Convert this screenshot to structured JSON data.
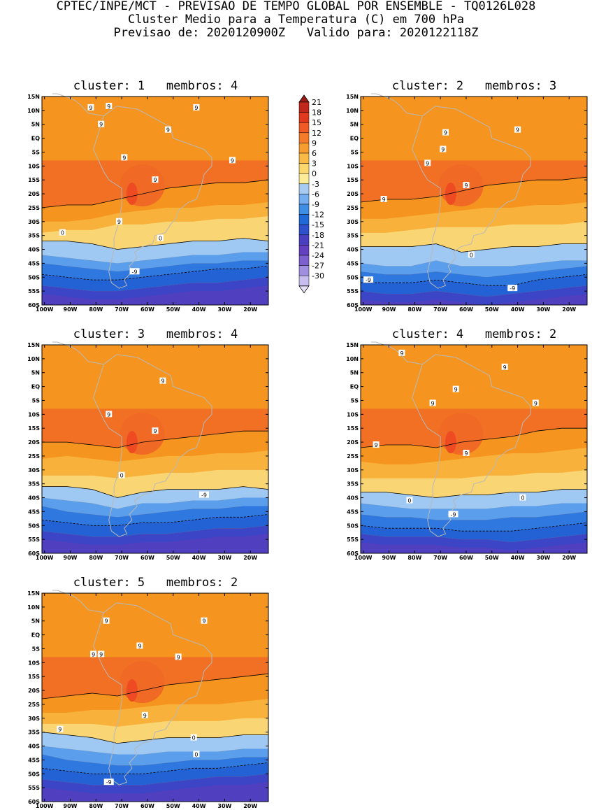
{
  "header": {
    "line1": "CPTEC/INPE/MCT - PREVISAO DE TEMPO GLOBAL POR ENSEMBLE - TQ0126L028",
    "line2": "Cluster Medio para a Temperatura (C) em 700 hPa",
    "line3": "Previsao de: 2020120900Z   Valido para: 2020122118Z"
  },
  "panels": [
    {
      "title": "cluster: 1   membros: 4",
      "labels": [
        "9",
        "9",
        "9",
        "9",
        "9",
        "9",
        "9",
        "9",
        "9",
        "0",
        "0",
        "-9"
      ]
    },
    {
      "title": "cluster: 2   membros: 3",
      "labels": [
        "9",
        "9",
        "9",
        "9",
        "9",
        "9",
        "0",
        "-9",
        "-9"
      ]
    },
    {
      "title": "cluster: 3   membros: 4",
      "labels": [
        "9",
        "9",
        "9",
        "0",
        "-9"
      ]
    },
    {
      "title": "cluster: 4   membros: 2",
      "labels": [
        "9",
        "9",
        "9",
        "9",
        "9",
        "9",
        "9",
        "0",
        "0",
        "-9"
      ]
    },
    {
      "title": "cluster: 5   membros: 2",
      "labels": [
        "9",
        "9",
        "9",
        "9",
        "9",
        "9",
        "9",
        "9",
        "0",
        "0",
        "-9",
        "-9"
      ]
    }
  ],
  "axes": {
    "lat_labels": [
      "15N",
      "10N",
      "5N",
      "EQ",
      "5S",
      "10S",
      "15S",
      "20S",
      "25S",
      "30S",
      "35S",
      "40S",
      "45S",
      "50S",
      "55S",
      "60S"
    ],
    "lon_labels": [
      "100W",
      "90W",
      "80W",
      "70W",
      "60W",
      "50W",
      "40W",
      "30W",
      "20W"
    ]
  },
  "colorbar": {
    "levels": [
      "21",
      "18",
      "15",
      "12",
      "9",
      "6",
      "3",
      "0",
      "-3",
      "-6",
      "-9",
      "-12",
      "-15",
      "-18",
      "-21",
      "-24",
      "-27",
      "-30"
    ],
    "colors": [
      "#9b1a14",
      "#c1281b",
      "#e0391d",
      "#f05a24",
      "#f57a2a",
      "#f79c2f",
      "#f9bb45",
      "#fbd86e",
      "#fcec97",
      "#a8cbf2",
      "#74aef0",
      "#3f8ee6",
      "#1f6ad6",
      "#2f52cc",
      "#4a3fc0",
      "#6240bf",
      "#7d5fcf",
      "#a08ee0",
      "#c7bdee",
      "#e6e0f7"
    ],
    "shaded_colors": {
      "c9": "#f06a26",
      "c6": "#f5951f",
      "c3": "#f8b13a",
      "c0": "#fad573",
      "cm3": "#9fc8f2",
      "cm6": "#5b9fec",
      "cm9": "#2f78e0",
      "cm12": "#2262d4",
      "cm15": "#3b45c6",
      "cm18": "#5a3fbd",
      "c12": "#ee4b22"
    }
  }
}
